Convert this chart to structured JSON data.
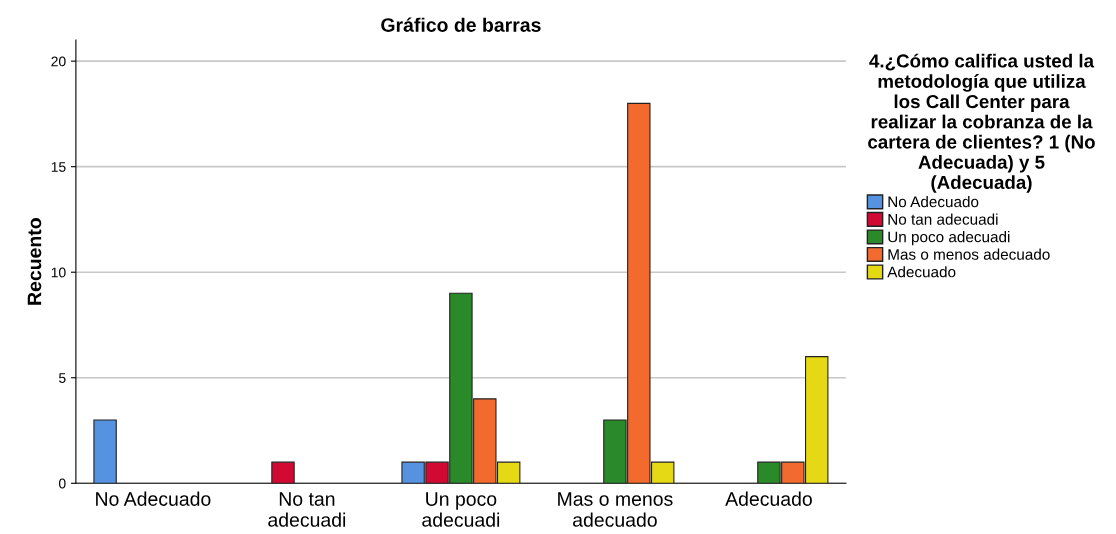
{
  "chart_data": {
    "type": "bar",
    "title": "Gráfico de barras",
    "ylabel": "Recuento",
    "legend_title": "4.¿Cómo califica usted la\nmetodología que utiliza\nlos Call Center para\nrealizar la cobranza de la\ncartera de clientes? 1 (No\nAdecuada) y 5\n(Adecuada)",
    "categories": [
      "No Adecuado",
      "No tan\nadecuadi",
      "Un poco\nadecuadi",
      "Mas o menos\nadecuado",
      "Adecuado"
    ],
    "series": [
      {
        "name": "No Adecuado",
        "color": "#5592e0",
        "values": [
          3,
          null,
          1,
          null,
          null
        ]
      },
      {
        "name": "No tan adecuadi",
        "color": "#d20a33",
        "values": [
          null,
          1,
          1,
          null,
          null
        ]
      },
      {
        "name": "Un poco adecuadi",
        "color": "#2a8a2a",
        "values": [
          null,
          null,
          9,
          3,
          1
        ]
      },
      {
        "name": "Mas o menos adecuado",
        "color": "#f26a2e",
        "values": [
          null,
          null,
          4,
          18,
          1
        ]
      },
      {
        "name": "Adecuado",
        "color": "#e5d916",
        "values": [
          null,
          null,
          1,
          1,
          6
        ]
      }
    ],
    "ylim": [
      0,
      21
    ],
    "yticks": [
      0,
      5,
      10,
      15,
      20
    ],
    "grid": "y",
    "legend": "right"
  }
}
